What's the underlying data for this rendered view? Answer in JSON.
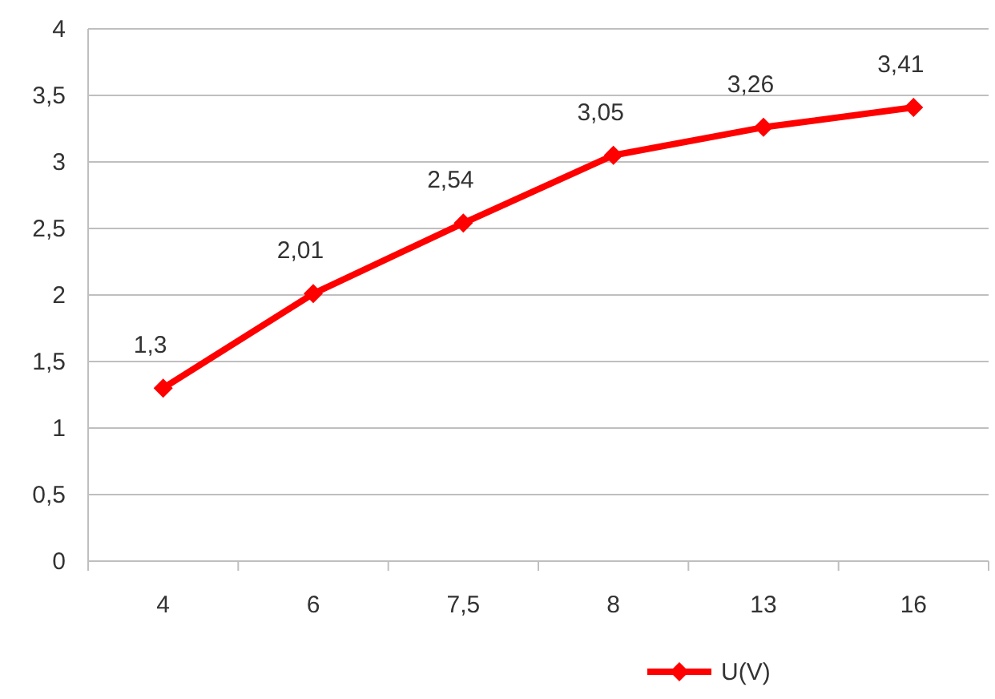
{
  "chart_data": {
    "type": "line",
    "categories": [
      "4",
      "6",
      "7,5",
      "8",
      "13",
      "16"
    ],
    "series": [
      {
        "name": "U(V)",
        "color": "#ff0000",
        "values": [
          1.3,
          2.01,
          2.54,
          3.05,
          3.26,
          3.41
        ],
        "value_labels": [
          "1,3",
          "2,01",
          "2,54",
          "3,05",
          "3,26",
          "3,41"
        ]
      }
    ],
    "ylim": [
      0,
      4
    ],
    "yticks": [
      0,
      {
        "value": 0.5,
        "label": "0,5"
      },
      1,
      {
        "value": 1.5,
        "label": "1,5"
      },
      2,
      {
        "value": 2.5,
        "label": "2,5"
      },
      3,
      {
        "value": 3.5,
        "label": "3,5"
      },
      4
    ],
    "grid": "y",
    "legend": "bottom",
    "marker": "diamond",
    "line_style": "solid"
  }
}
